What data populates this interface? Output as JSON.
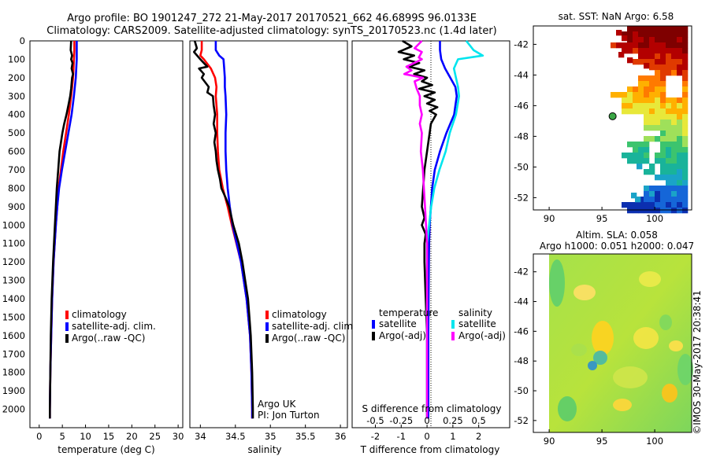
{
  "header": {
    "line1": "Argo profile: BO 1901247_272 21-May-2017 20170521_662 46.6899S 96.0133E",
    "line2": "Climatology: CARS2009. Satellite-adjusted climatology: synTS_20170523.nc (1.4d later)"
  },
  "depth_ticks": [
    "0",
    "100",
    "200",
    "300",
    "400",
    "500",
    "600",
    "700",
    "800",
    "900",
    "1000",
    "1100",
    "1200",
    "1300",
    "1400",
    "1500",
    "1600",
    "1700",
    "1800",
    "1900",
    "2000"
  ],
  "colors": {
    "climatology": "#ff0000",
    "satellite": "#0000ff",
    "argo": "#000000",
    "satellite_s": "#00e5ee",
    "argo_s": "#ff00ff"
  },
  "chart_data": [
    {
      "type": "line",
      "id": "temperature",
      "xlabel": "temperature (deg C)",
      "ylabel": "",
      "xlim": [
        -2,
        31
      ],
      "ylim": [
        2100,
        0
      ],
      "xticks": [
        "0",
        "5",
        "10",
        "15",
        "20",
        "25",
        "30"
      ],
      "legend": [
        "climatology",
        "satellite-adj. clim.",
        "Argo(..raw -QC)"
      ],
      "series": [
        {
          "name": "climatology",
          "depth": [
            0,
            50,
            100,
            150,
            200,
            250,
            300,
            400,
            500,
            600,
            700,
            800,
            900,
            1000,
            1200,
            1400,
            1600,
            1800,
            2000,
            2050
          ],
          "values": [
            7.6,
            7.6,
            7.5,
            7.4,
            7.3,
            7.1,
            6.9,
            6.4,
            5.8,
            5.2,
            4.7,
            4.2,
            3.9,
            3.6,
            3.1,
            2.8,
            2.6,
            2.4,
            2.3,
            2.3
          ]
        },
        {
          "name": "satellite-adj. clim.",
          "depth": [
            0,
            50,
            100,
            150,
            200,
            250,
            300,
            400,
            500,
            600,
            700,
            800,
            900,
            1000,
            1200,
            1400,
            1600,
            1800,
            2000,
            2050
          ],
          "values": [
            8.1,
            8.1,
            8.1,
            8.0,
            7.9,
            7.7,
            7.5,
            7.0,
            6.3,
            5.6,
            4.9,
            4.3,
            3.9,
            3.6,
            3.1,
            2.8,
            2.6,
            2.4,
            2.3,
            2.3
          ]
        },
        {
          "name": "Argo(..raw -QC)",
          "depth": [
            0,
            50,
            80,
            100,
            120,
            150,
            180,
            200,
            230,
            260,
            300,
            350,
            400,
            450,
            500,
            600,
            700,
            800,
            900,
            1000,
            1200,
            1400,
            1600,
            1800,
            2000,
            2050
          ],
          "values": [
            6.9,
            6.8,
            7.1,
            6.9,
            7.2,
            7.0,
            7.3,
            7.1,
            7.0,
            6.9,
            6.7,
            6.3,
            5.9,
            5.4,
            5.0,
            4.4,
            4.1,
            3.8,
            3.6,
            3.4,
            3.0,
            2.7,
            2.5,
            2.4,
            2.3,
            2.3
          ]
        }
      ]
    },
    {
      "type": "line",
      "id": "salinity",
      "xlabel": "salinity",
      "ylabel": "",
      "xlim": [
        33.85,
        36.1
      ],
      "ylim": [
        2100,
        0
      ],
      "xticks": [
        "34",
        "34.5",
        "35",
        "35.5",
        "36"
      ],
      "legend": [
        "climatology",
        "satellite-adj. clim.",
        "Argo(..raw -QC)"
      ],
      "annotations": [
        "Argo UK",
        "PI: Jon Turton"
      ],
      "series": [
        {
          "name": "climatology",
          "depth": [
            0,
            50,
            80,
            100,
            150,
            200,
            250,
            300,
            400,
            500,
            600,
            700,
            800,
            900,
            1000,
            1200,
            1400,
            1600,
            1800,
            2000,
            2050
          ],
          "values": [
            34.02,
            34.02,
            34.0,
            34.05,
            34.15,
            34.21,
            34.23,
            34.22,
            34.24,
            34.24,
            34.25,
            34.27,
            34.32,
            34.39,
            34.45,
            34.58,
            34.66,
            34.71,
            34.73,
            34.74,
            34.74
          ]
        },
        {
          "name": "satellite-adj. clim.",
          "depth": [
            0,
            50,
            80,
            100,
            150,
            200,
            250,
            300,
            400,
            500,
            600,
            700,
            800,
            900,
            1000,
            1200,
            1400,
            1600,
            1800,
            2000,
            2050
          ],
          "values": [
            34.22,
            34.22,
            34.27,
            34.33,
            34.34,
            34.35,
            34.35,
            34.36,
            34.37,
            34.36,
            34.36,
            34.37,
            34.39,
            34.42,
            34.46,
            34.58,
            34.66,
            34.71,
            34.73,
            34.74,
            34.74
          ]
        },
        {
          "name": "Argo(..raw -QC)",
          "depth": [
            0,
            40,
            60,
            100,
            140,
            150,
            180,
            200,
            250,
            280,
            300,
            350,
            400,
            450,
            500,
            550,
            600,
            650,
            700,
            750,
            800,
            850,
            900,
            1000,
            1100,
            1200,
            1300,
            1400,
            1500,
            1600,
            1800,
            2000,
            2050
          ],
          "values": [
            33.92,
            33.95,
            33.91,
            34.0,
            34.1,
            33.98,
            34.05,
            34.02,
            34.12,
            34.1,
            34.18,
            34.19,
            34.21,
            34.19,
            34.22,
            34.2,
            34.22,
            34.23,
            34.25,
            34.28,
            34.3,
            34.36,
            34.41,
            34.47,
            34.55,
            34.6,
            34.64,
            34.68,
            34.7,
            34.72,
            34.74,
            34.75,
            34.75
          ]
        }
      ]
    },
    {
      "type": "line",
      "id": "difference",
      "xlabel": "T difference from climatology",
      "xlabel_top": "S difference from climatology",
      "xlim": [
        -2.9,
        3.2
      ],
      "ylim": [
        2100,
        0
      ],
      "xticks": [
        "-2",
        "-1",
        "0",
        "1",
        "2"
      ],
      "xticks_top": [
        "-0.5",
        "-0.25",
        "0",
        "0.25",
        "0.5"
      ],
      "legend_titles": [
        "temperature",
        "salinity"
      ],
      "legend": [
        "satellite",
        "Argo(-adj)",
        "satellite",
        "Argo(-adj)"
      ],
      "series": [
        {
          "name": "temperature satellite",
          "depth": [
            0,
            50,
            100,
            150,
            200,
            250,
            300,
            350,
            400,
            450,
            500,
            600,
            700,
            800,
            900,
            1000,
            1100,
            1200,
            1400,
            1600,
            1800,
            2000,
            2050
          ],
          "values": [
            0.5,
            0.5,
            0.55,
            0.7,
            0.9,
            1.1,
            1.15,
            1.1,
            1.05,
            0.9,
            0.75,
            0.5,
            0.3,
            0.2,
            0.15,
            0.1,
            0.08,
            0.07,
            0.06,
            0.05,
            0.05,
            0.05,
            0.05
          ]
        },
        {
          "name": "temperature Argo(-adj)",
          "depth": [
            0,
            30,
            60,
            80,
            100,
            120,
            140,
            160,
            180,
            200,
            220,
            240,
            260,
            280,
            300,
            320,
            340,
            360,
            380,
            400,
            450,
            500,
            600,
            700,
            800,
            900,
            960,
            1000,
            1050,
            1100,
            1200,
            1400,
            1600,
            1800,
            2000,
            2050
          ],
          "values": [
            -0.95,
            -0.6,
            -1.1,
            -0.5,
            -0.9,
            -0.3,
            -0.7,
            -0.1,
            -0.5,
            0.0,
            -0.2,
            0.2,
            -0.3,
            0.3,
            -0.1,
            0.3,
            0.0,
            0.4,
            0.1,
            0.35,
            0.15,
            0.1,
            0.0,
            -0.1,
            -0.15,
            -0.2,
            -0.1,
            -0.2,
            -0.05,
            -0.1,
            -0.1,
            -0.05,
            0.0,
            0.0,
            0.0,
            0.0
          ]
        },
        {
          "name": "salinity satellite",
          "depth": [
            0,
            50,
            80,
            100,
            150,
            200,
            250,
            300,
            400,
            500,
            600,
            700,
            800,
            900,
            1000,
            1100,
            1200,
            1400,
            1600,
            1800,
            2000,
            2050
          ],
          "values": [
            0.38,
            0.45,
            0.54,
            0.3,
            0.26,
            0.28,
            0.3,
            0.31,
            0.28,
            0.22,
            0.18,
            0.12,
            0.07,
            0.04,
            0.02,
            0.0,
            0.0,
            0.0,
            0.0,
            0.0,
            0.0,
            0.0
          ]
        },
        {
          "name": "salinity Argo(-adj)",
          "depth": [
            0,
            40,
            60,
            90,
            100,
            140,
            160,
            180,
            200,
            220,
            260,
            300,
            350,
            400,
            450,
            500,
            600,
            700,
            800,
            900,
            1000,
            1100,
            1200,
            1400,
            1600,
            1800,
            2000,
            2050
          ],
          "values": [
            -0.05,
            -0.12,
            -0.05,
            -0.08,
            -0.05,
            -0.2,
            -0.15,
            -0.22,
            -0.04,
            -0.12,
            -0.1,
            -0.07,
            -0.07,
            -0.05,
            -0.07,
            -0.05,
            -0.06,
            -0.04,
            -0.03,
            -0.02,
            -0.01,
            0.0,
            0.0,
            0.0,
            0.0,
            0.0,
            0.0,
            0.0
          ]
        }
      ]
    },
    {
      "type": "heatmap",
      "id": "sst-map",
      "title": "sat. SST: NaN Argo: 6.58",
      "xlim": [
        88.5,
        103.5
      ],
      "ylim": [
        -52.8,
        -40.8
      ],
      "xticks": [
        "90",
        "95",
        "100"
      ],
      "yticks": [
        "-42",
        "-44",
        "-46",
        "-48",
        "-50",
        "-52"
      ],
      "argo_position": {
        "lon": 96.01,
        "lat": -46.69
      }
    },
    {
      "type": "heatmap",
      "id": "sla-map",
      "title_line1": "Altim. SLA: 0.058",
      "title_line2": "Argo h1000: 0.051 h2000: 0.047",
      "xlim": [
        88.5,
        103.5
      ],
      "ylim": [
        -52.8,
        -40.8
      ],
      "xticks": [
        "90",
        "95",
        "100"
      ],
      "yticks": [
        "-42",
        "-44",
        "-46",
        "-48",
        "-50",
        "-52"
      ],
      "side_label": "©IMOS 30-May-2017 20:38:41"
    }
  ]
}
